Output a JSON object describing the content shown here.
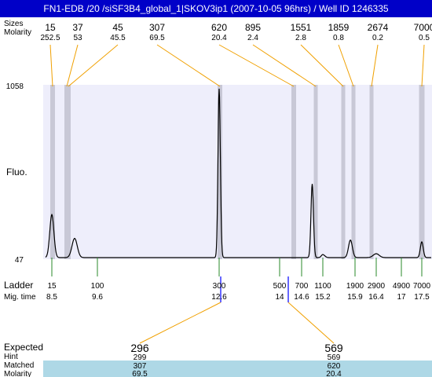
{
  "title": "FN1-EDB /20 /siSF3B4_global_1|SKOV3ip1 (2007-10-05 96hrs) / Well ID 1246335",
  "top_rows": {
    "size_label": "Sizes",
    "molarity_label": "Molarity"
  },
  "labels": {
    "fluo": "Fluo.",
    "ladder": "Ladder",
    "mig_time": "Mig. time",
    "expected": "Expected",
    "hint": "Hint",
    "matched": "Matched",
    "molarity": "Molarity"
  },
  "colors": {
    "title_bg": "#0000c8",
    "plot_bg": "#eeeefb",
    "band": "#c8c8d6",
    "connector": "#f0a000",
    "ladder_tick": "#2a8a2a",
    "marker": "#0000ff",
    "expected_text": "#ff0000",
    "matched_bg": "#aed8e6"
  },
  "chart_data": {
    "type": "line",
    "title": "FN1-EDB /20 /siSF3B4_global_1|SKOV3ip1 (2007-10-05 96hrs) / Well ID 1246335",
    "xlabel": "Mig. time",
    "ylabel": "Fluo.",
    "ylim": [
      47,
      1058
    ],
    "y_ticks": [
      "1058",
      "47"
    ],
    "grid": false,
    "peaks": [
      {
        "size": "15",
        "molarity": "252.5"
      },
      {
        "size": "37",
        "molarity": "53"
      },
      {
        "size": "45",
        "molarity": "45.5"
      },
      {
        "size": "307",
        "molarity": "69.5"
      },
      {
        "size": "620",
        "molarity": "20.4"
      },
      {
        "size": "895",
        "molarity": "2.4"
      },
      {
        "size": "1551",
        "molarity": "2.8"
      },
      {
        "size": "1859",
        "molarity": "0.8"
      },
      {
        "size": "2674",
        "molarity": "0.2"
      },
      {
        "size": "7000",
        "molarity": "0.5"
      }
    ],
    "ladder": [
      {
        "size": "15",
        "mig_time": "8.5"
      },
      {
        "size": "100",
        "mig_time": "9.6"
      },
      {
        "size": "300",
        "mig_time": "12.6"
      },
      {
        "size": "500",
        "mig_time": "14"
      },
      {
        "size": "700",
        "mig_time": "14.6"
      },
      {
        "size": "1100",
        "mig_time": "15.2"
      },
      {
        "size": "1900",
        "mig_time": "15.9"
      },
      {
        "size": "2900",
        "mig_time": "16.4"
      },
      {
        "size": "4900",
        "mig_time": "17"
      },
      {
        "size": "7000",
        "mig_time": "17.5"
      }
    ],
    "expected": [
      {
        "expected": "296",
        "hint": "299",
        "matched": "307",
        "molarity": "69.5"
      },
      {
        "expected": "569",
        "hint": "569",
        "matched": "620",
        "molarity": "20.4"
      }
    ],
    "trace": {
      "baseline": 47,
      "peaks": [
        {
          "mig_time": 8.5,
          "height": 300,
          "width": 0.07
        },
        {
          "mig_time": 9.05,
          "height": 160,
          "width": 0.09
        },
        {
          "mig_time": 12.6,
          "height": 1040,
          "width": 0.04
        },
        {
          "mig_time": 14.9,
          "height": 480,
          "width": 0.05
        },
        {
          "mig_time": 15.2,
          "height": 65,
          "width": 0.06
        },
        {
          "mig_time": 15.8,
          "height": 150,
          "width": 0.06
        },
        {
          "mig_time": 16.4,
          "height": 70,
          "width": 0.1
        },
        {
          "mig_time": 17.5,
          "height": 140,
          "width": 0.05
        }
      ]
    }
  }
}
